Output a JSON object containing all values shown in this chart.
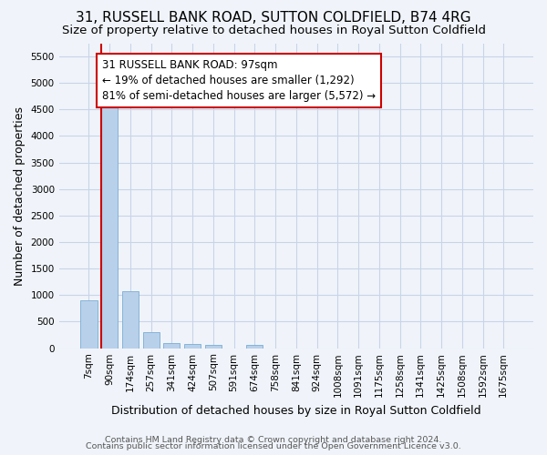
{
  "title": "31, RUSSELL BANK ROAD, SUTTON COLDFIELD, B74 4RG",
  "subtitle": "Size of property relative to detached houses in Royal Sutton Coldfield",
  "xlabel": "Distribution of detached houses by size in Royal Sutton Coldfield",
  "ylabel": "Number of detached properties",
  "footnote1": "Contains HM Land Registry data © Crown copyright and database right 2024.",
  "footnote2": "Contains public sector information licensed under the Open Government Licence v3.0.",
  "categories": [
    "7sqm",
    "90sqm",
    "174sqm",
    "257sqm",
    "341sqm",
    "424sqm",
    "507sqm",
    "591sqm",
    "674sqm",
    "758sqm",
    "841sqm",
    "924sqm",
    "1008sqm",
    "1091sqm",
    "1175sqm",
    "1258sqm",
    "1341sqm",
    "1425sqm",
    "1508sqm",
    "1592sqm",
    "1675sqm"
  ],
  "values": [
    900,
    4600,
    1080,
    300,
    90,
    80,
    55,
    0,
    55,
    0,
    0,
    0,
    0,
    0,
    0,
    0,
    0,
    0,
    0,
    0,
    0
  ],
  "bar_color": "#b8d0ea",
  "bar_edge_color": "#7aadd4",
  "highlight_bar_index": 1,
  "highlight_color": "#cc0000",
  "annotation_text": "31 RUSSELL BANK ROAD: 97sqm\n← 19% of detached houses are smaller (1,292)\n81% of semi-detached houses are larger (5,572) →",
  "annotation_box_color": "#ffffff",
  "annotation_box_edge": "#cc0000",
  "ylim": [
    0,
    5750
  ],
  "yticks": [
    0,
    500,
    1000,
    1500,
    2000,
    2500,
    3000,
    3500,
    4000,
    4500,
    5000,
    5500
  ],
  "grid_color": "#c8d4e8",
  "background_color": "#f0f4fa",
  "title_fontsize": 11,
  "subtitle_fontsize": 9.5,
  "label_fontsize": 9,
  "tick_fontsize": 7.5,
  "footnote_fontsize": 6.8,
  "annotation_fontsize": 8.5
}
